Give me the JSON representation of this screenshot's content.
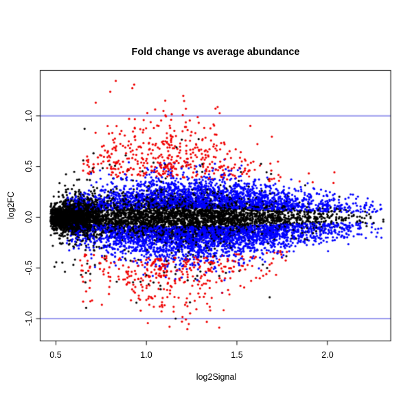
{
  "chart_data": {
    "type": "scatter",
    "title": "Fold change vs average abundance",
    "xlabel": "log2Signal",
    "ylabel": "log2FC",
    "xlim": [
      0.413,
      2.35
    ],
    "ylim": [
      -1.22,
      1.449
    ],
    "x_ticks": [
      0.5,
      1.0,
      1.5,
      2.0
    ],
    "x_tick_labels": [
      "0.5",
      "1.0",
      "1.5",
      "2.0"
    ],
    "y_ticks": [
      -1.0,
      -0.5,
      0.0,
      0.5,
      1.0
    ],
    "y_tick_labels": [
      "-1.0",
      "-0.5",
      "0.0",
      "0.5",
      "1.0"
    ],
    "grid": false,
    "legend": null,
    "hlines": {
      "y": [
        1.0,
        -1.0
      ],
      "color": "#9b9bee",
      "width": 2
    },
    "point_radius_px": 1.6,
    "seed": 13,
    "series": [
      {
        "name": "non-significant",
        "color": "#000000",
        "n": 5200,
        "x": {
          "mix": [
            {
              "w": 0.33,
              "mean": 0.6,
              "sd": 0.085
            },
            {
              "w": 0.67,
              "mean": 1.18,
              "sd": 0.4
            }
          ],
          "min": 0.47,
          "max": 2.31
        },
        "y": {
          "kind": "core",
          "sd0": 0.032,
          "sd1": 0.085,
          "shape_mean": 1.1,
          "shape_sd": 0.48,
          "outlier_frac": 0.07,
          "outlier_mult": 3.4
        }
      },
      {
        "name": "moderate-fold-change",
        "color": "#0000ff",
        "n": 5000,
        "x": {
          "mix": [
            {
              "w": 1.0,
              "mean": 1.3,
              "sd": 0.42
            }
          ],
          "min": 0.56,
          "max": 2.3
        },
        "y": {
          "kind": "band",
          "gap0": 0.04,
          "gap1": 0.05,
          "sd": 0.13,
          "f0": 0.45,
          "f1": 0.75,
          "shape_mean": 1.2,
          "shape_sd": 0.5,
          "p_upper": 0.45,
          "lower_scale": 1.1
        }
      },
      {
        "name": "strong-fold-change",
        "color": "#f00000",
        "n": 820,
        "x": {
          "mix": [
            {
              "w": 1.0,
              "mean": 1.13,
              "sd": 0.28
            }
          ],
          "min": 0.63,
          "max": 2.17
        },
        "y": {
          "kind": "outer",
          "base0": 0.3,
          "base1": 0.1,
          "sd": 0.26,
          "f0": 0.45,
          "f1": 0.75,
          "shape_mean": 1.05,
          "shape_sd": 0.42,
          "p_upper": 0.54,
          "lower_scale": 0.88
        }
      }
    ]
  }
}
